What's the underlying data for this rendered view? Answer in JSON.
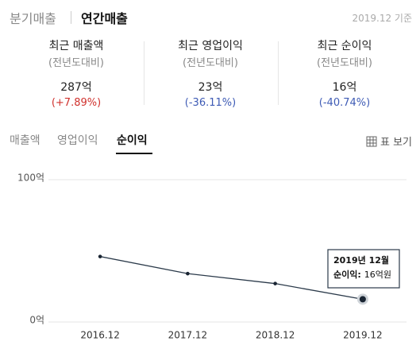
{
  "header": {
    "tabs": [
      "분기매출",
      "연간매출"
    ],
    "basis": "2019.12 기준"
  },
  "summary": [
    {
      "label": "최근 매출액",
      "sub": "(전년도대비)",
      "value": "287억",
      "change": "(+7.89%)"
    },
    {
      "label": "최근 영업이익",
      "sub": "(전년도대비)",
      "value": "23억",
      "change": "(-36.11%)"
    },
    {
      "label": "최근 순이익",
      "sub": "(전년도대비)",
      "value": "16억",
      "change": "(-40.74%)"
    }
  ],
  "subtabs": [
    "매출액",
    "영업이익",
    "순이익"
  ],
  "table_view": "표 보기",
  "chart_data": {
    "type": "line",
    "categories": [
      "2016.12",
      "2017.12",
      "2018.12",
      "2019.12"
    ],
    "values": [
      46,
      34,
      27,
      16
    ],
    "color": "#2b3a4a",
    "ylim": [
      0,
      100
    ],
    "yticks": [
      {
        "value": 0,
        "label": "0억"
      },
      {
        "value": 100,
        "label": "100억"
      }
    ],
    "grid": true,
    "tooltip": {
      "title": "2019년 12월",
      "label": "순이익:",
      "value": "16억원"
    }
  }
}
